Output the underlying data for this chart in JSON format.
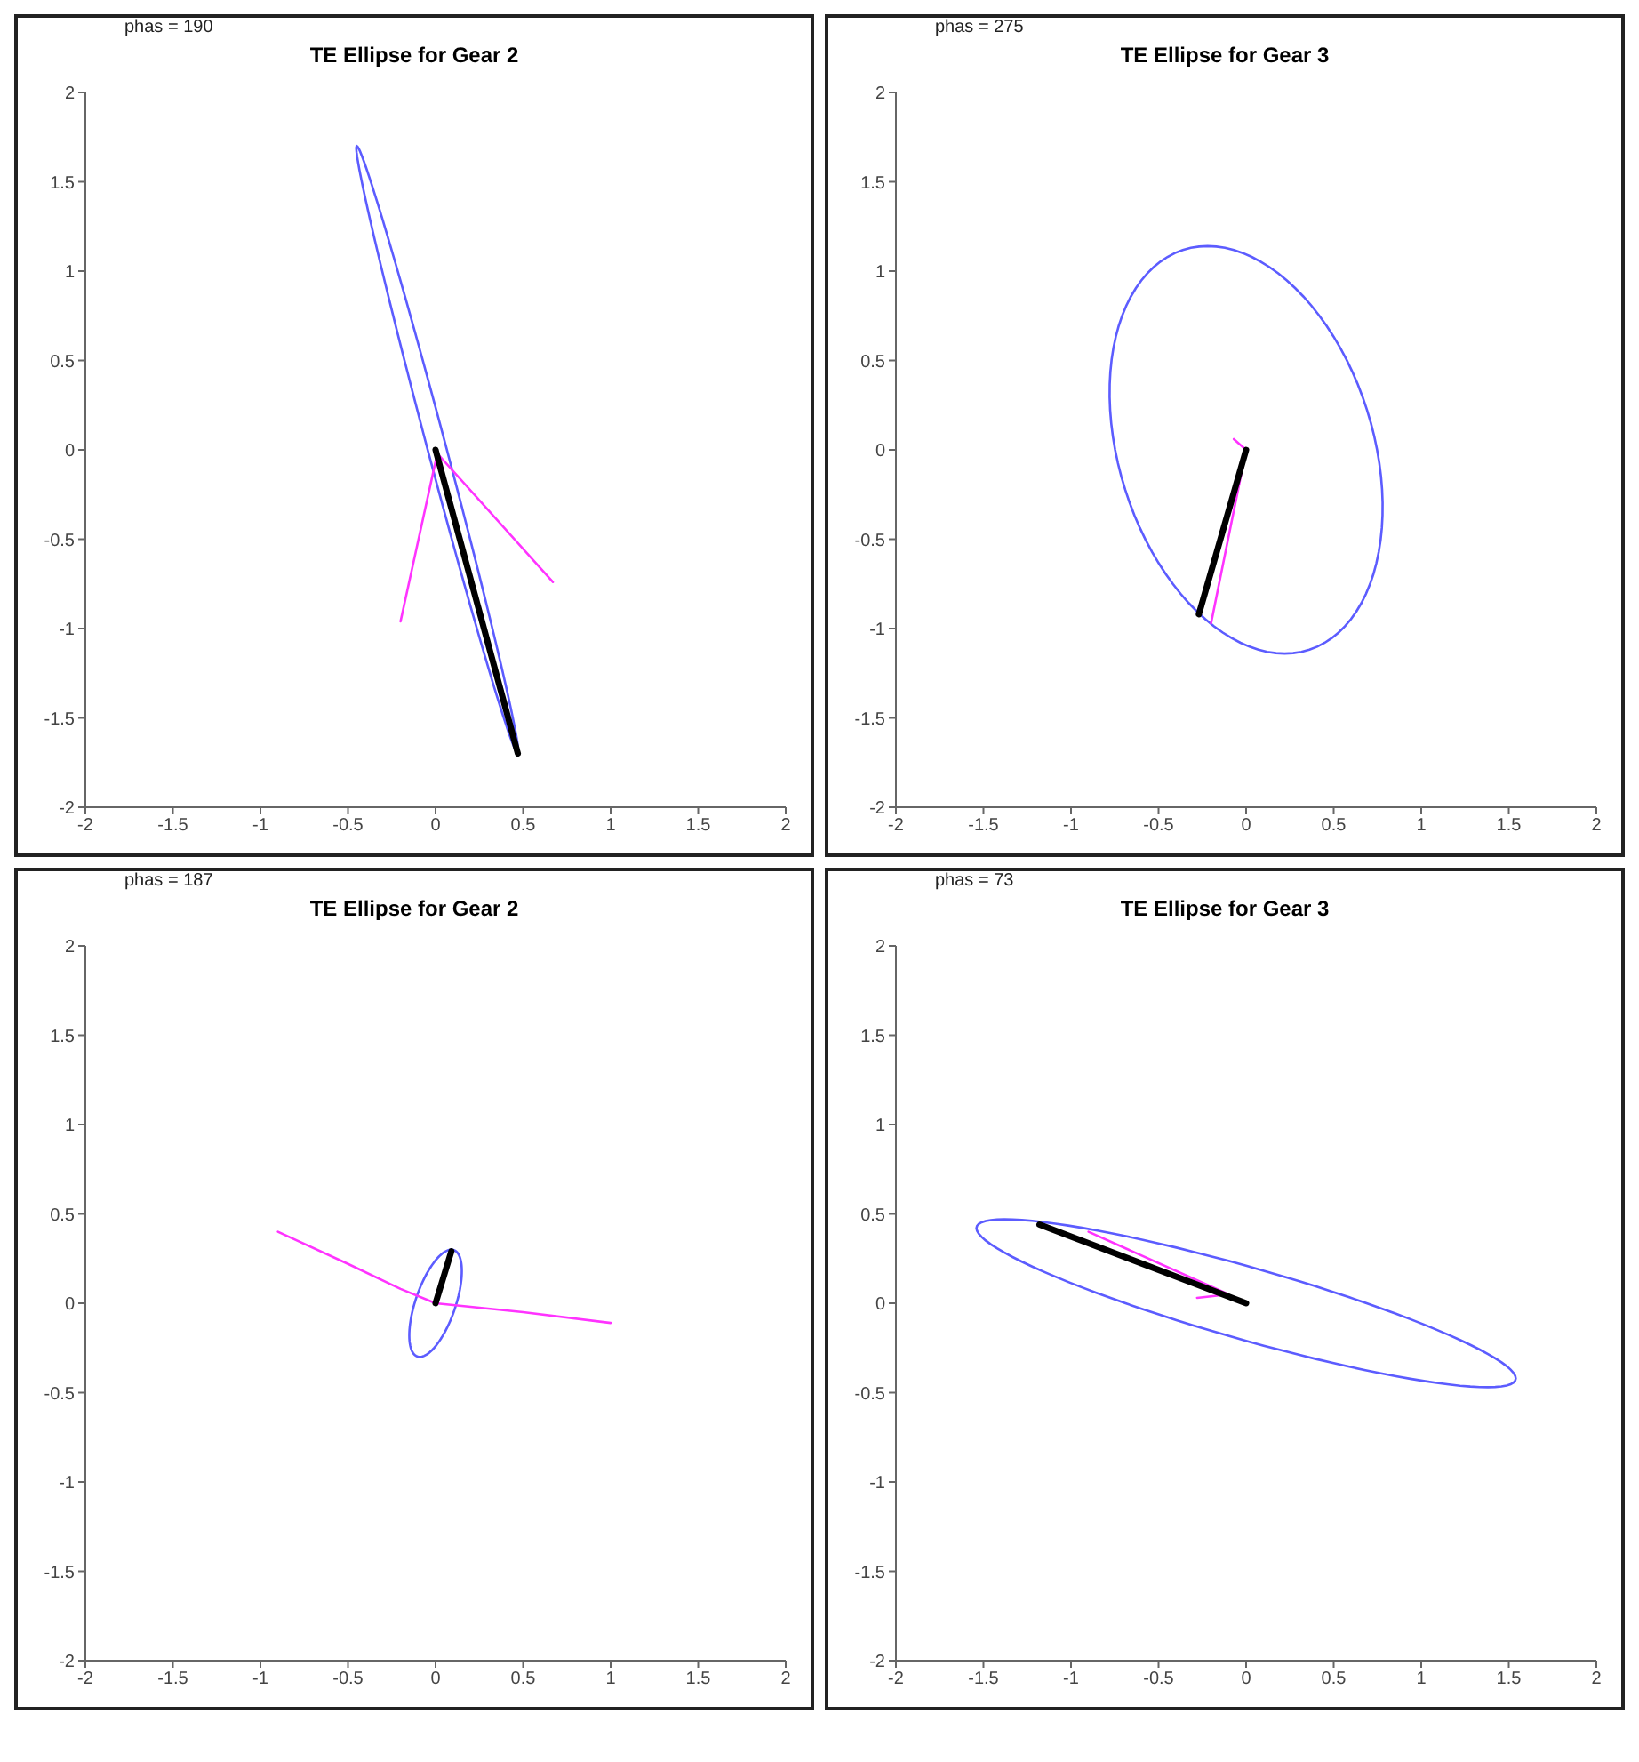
{
  "chart_data": [
    {
      "type": "line",
      "title": "TE Ellipse for Gear 2",
      "annotations": [
        "phas = 190"
      ],
      "xlim": [
        -2,
        2
      ],
      "ylim": [
        -2,
        2
      ],
      "xticks": [
        -2,
        -1.5,
        -1,
        -0.5,
        0,
        0.5,
        1,
        1.5,
        2
      ],
      "yticks": [
        -2,
        -1.5,
        -1,
        -0.5,
        0,
        0.5,
        1,
        1.5,
        2
      ],
      "series": [
        {
          "color": "#ff33ff",
          "x": [
            -0.2,
            0.01,
            0.67
          ],
          "values": [
            -0.96,
            -0.02,
            -0.74
          ]
        },
        {
          "color": "#000000",
          "x": [
            0,
            0.47
          ],
          "values": [
            0,
            -1.7
          ]
        }
      ]
    },
    {
      "type": "line",
      "title": "TE Ellipse for Gear 3",
      "annotations": [
        "phas = 275"
      ],
      "xlim": [
        -2,
        2
      ],
      "ylim": [
        -2,
        2
      ],
      "xticks": [
        -2,
        -1.5,
        -1,
        -0.5,
        0,
        0.5,
        1,
        1.5,
        2
      ],
      "yticks": [
        -2,
        -1.5,
        -1,
        -0.5,
        0,
        0.5,
        1,
        1.5,
        2
      ],
      "series": [
        {
          "color": "#ff33ff",
          "x": [
            -0.07,
            0,
            -0.2
          ],
          "values": [
            0.06,
            0,
            -0.97
          ]
        },
        {
          "color": "#000000",
          "x": [
            0,
            -0.27
          ],
          "values": [
            0,
            -0.92
          ]
        }
      ]
    },
    {
      "type": "line",
      "title": "TE Ellipse for Gear 2",
      "annotations": [
        "phas = 187"
      ],
      "xlim": [
        -2,
        2
      ],
      "ylim": [
        -2,
        2
      ],
      "xticks": [
        -2,
        -1.5,
        -1,
        -0.5,
        0,
        0.5,
        1,
        1.5,
        2
      ],
      "yticks": [
        -2,
        -1.5,
        -1,
        -0.5,
        0,
        0.5,
        1,
        1.5,
        2
      ],
      "series": [
        {
          "color": "#ff33ff",
          "x": [
            -0.9,
            -0.5,
            -0.2,
            0,
            0.1,
            0.5,
            1.0
          ],
          "values": [
            0.4,
            0.22,
            0.08,
            0,
            -0.01,
            -0.05,
            -0.11
          ]
        },
        {
          "color": "#000000",
          "x": [
            0,
            0.09
          ],
          "values": [
            0,
            0.29
          ]
        }
      ]
    },
    {
      "type": "line",
      "title": "TE Ellipse for Gear 3",
      "annotations": [
        "phas = 73"
      ],
      "xlim": [
        -2,
        2
      ],
      "ylim": [
        -2,
        2
      ],
      "xticks": [
        -2,
        -1.5,
        -1,
        -0.5,
        0,
        0.5,
        1,
        1.5,
        2
      ],
      "yticks": [
        -2,
        -1.5,
        -1,
        -0.5,
        0,
        0.5,
        1,
        1.5,
        2
      ],
      "series": [
        {
          "color": "#ff33ff",
          "x": [
            -0.9,
            -0.1,
            -0.28
          ],
          "values": [
            0.4,
            0.05,
            0.03
          ]
        },
        {
          "color": "#000000",
          "x": [
            0,
            -1.18
          ],
          "values": [
            0,
            0.44
          ]
        }
      ]
    }
  ]
}
